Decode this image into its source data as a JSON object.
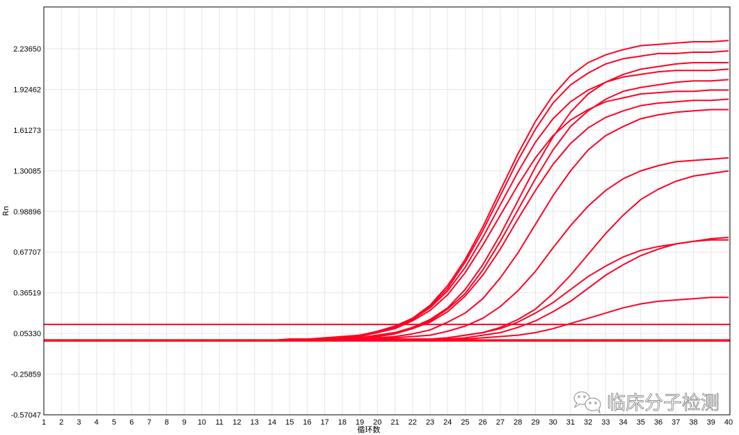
{
  "chart_data": {
    "type": "line",
    "title": "",
    "xlabel": "循环数",
    "ylabel": "Rn",
    "xlim": [
      1,
      40
    ],
    "ylim": [
      -0.57047,
      2.557
    ],
    "x_ticks": [
      1,
      2,
      3,
      4,
      5,
      6,
      7,
      8,
      9,
      10,
      11,
      12,
      13,
      14,
      15,
      16,
      17,
      18,
      19,
      20,
      21,
      22,
      23,
      24,
      25,
      26,
      27,
      28,
      29,
      30,
      31,
      32,
      33,
      34,
      35,
      36,
      37,
      38,
      39,
      40
    ],
    "y_ticks": [
      "-0.57047",
      "-0.25859",
      "0.05330",
      "0.36519",
      "0.67707",
      "0.98896",
      "1.30085",
      "1.61273",
      "1.92462",
      "2.23650"
    ],
    "grid": true,
    "series_color": "#ff0022",
    "horizontal_lines": [
      0.123,
      0.0
    ],
    "x": [
      1,
      2,
      3,
      4,
      5,
      6,
      7,
      8,
      9,
      10,
      11,
      12,
      13,
      14,
      15,
      16,
      17,
      18,
      19,
      20,
      21,
      22,
      23,
      24,
      25,
      26,
      27,
      28,
      29,
      30,
      31,
      32,
      33,
      34,
      35,
      36,
      37,
      38,
      39,
      40
    ],
    "series": [
      {
        "values": [
          0,
          0,
          0,
          0,
          0,
          0,
          0,
          0,
          0,
          0,
          0,
          0,
          0,
          0,
          0.01,
          0.01,
          0.02,
          0.03,
          0.04,
          0.07,
          0.11,
          0.17,
          0.27,
          0.42,
          0.62,
          0.87,
          1.15,
          1.43,
          1.68,
          1.88,
          2.03,
          2.13,
          2.19,
          2.23,
          2.26,
          2.27,
          2.28,
          2.29,
          2.29,
          2.3
        ]
      },
      {
        "values": [
          0,
          0,
          0,
          0,
          0,
          0,
          0,
          0,
          0,
          0,
          0,
          0,
          0,
          0,
          0.01,
          0.01,
          0.01,
          0.02,
          0.04,
          0.06,
          0.1,
          0.17,
          0.26,
          0.4,
          0.6,
          0.84,
          1.11,
          1.38,
          1.62,
          1.82,
          1.96,
          2.05,
          2.12,
          2.16,
          2.18,
          2.2,
          2.2,
          2.21,
          2.21,
          2.22
        ]
      },
      {
        "values": [
          0,
          0,
          0,
          0,
          0,
          0,
          0,
          0,
          0,
          0,
          0,
          0,
          0,
          0,
          0,
          0.01,
          0.01,
          0.01,
          0.02,
          0.04,
          0.06,
          0.1,
          0.16,
          0.25,
          0.39,
          0.58,
          0.81,
          1.07,
          1.33,
          1.56,
          1.75,
          1.89,
          1.98,
          2.04,
          2.08,
          2.1,
          2.12,
          2.13,
          2.13,
          2.13
        ]
      },
      {
        "values": [
          0,
          0,
          0,
          0,
          0,
          0,
          0,
          0,
          0,
          0,
          0,
          0,
          0,
          0,
          0.01,
          0.01,
          0.01,
          0.02,
          0.04,
          0.06,
          0.1,
          0.16,
          0.25,
          0.38,
          0.56,
          0.79,
          1.04,
          1.29,
          1.52,
          1.7,
          1.83,
          1.92,
          1.98,
          2.02,
          2.04,
          2.06,
          2.07,
          2.07,
          2.07,
          2.08
        ]
      },
      {
        "values": [
          0,
          0,
          0,
          0,
          0,
          0,
          0,
          0,
          0,
          0,
          0,
          0,
          0,
          0,
          0,
          0.01,
          0.01,
          0.01,
          0.02,
          0.04,
          0.06,
          0.09,
          0.15,
          0.24,
          0.36,
          0.54,
          0.76,
          1.0,
          1.24,
          1.46,
          1.64,
          1.76,
          1.85,
          1.91,
          1.94,
          1.96,
          1.98,
          1.99,
          1.99,
          2.0
        ]
      },
      {
        "values": [
          0,
          0,
          0,
          0,
          0,
          0,
          0,
          0,
          0,
          0,
          0,
          0,
          0,
          0,
          0,
          0.01,
          0.01,
          0.02,
          0.03,
          0.06,
          0.09,
          0.15,
          0.23,
          0.35,
          0.52,
          0.73,
          0.96,
          1.19,
          1.4,
          1.57,
          1.69,
          1.77,
          1.83,
          1.86,
          1.89,
          1.9,
          1.91,
          1.91,
          1.92,
          1.92
        ]
      },
      {
        "values": [
          0,
          0,
          0,
          0,
          0,
          0,
          0,
          0,
          0,
          0,
          0,
          0,
          0,
          0,
          0,
          0,
          0.01,
          0.01,
          0.02,
          0.03,
          0.05,
          0.09,
          0.14,
          0.22,
          0.34,
          0.5,
          0.7,
          0.93,
          1.15,
          1.35,
          1.51,
          1.63,
          1.71,
          1.76,
          1.8,
          1.82,
          1.83,
          1.84,
          1.84,
          1.85
        ]
      },
      {
        "values": [
          0,
          0,
          0,
          0,
          0,
          0,
          0,
          0,
          0,
          0,
          0,
          0,
          0,
          0,
          0,
          0,
          0,
          0.01,
          0.01,
          0.02,
          0.03,
          0.05,
          0.08,
          0.14,
          0.21,
          0.32,
          0.48,
          0.67,
          0.89,
          1.11,
          1.3,
          1.46,
          1.57,
          1.64,
          1.7,
          1.73,
          1.75,
          1.76,
          1.77,
          1.77
        ]
      },
      {
        "values": [
          0,
          0,
          0,
          0,
          0,
          0,
          0,
          0,
          0,
          0,
          0,
          0,
          0,
          0,
          0,
          0,
          0,
          0,
          0.01,
          0.01,
          0.02,
          0.03,
          0.04,
          0.07,
          0.11,
          0.17,
          0.26,
          0.38,
          0.53,
          0.71,
          0.88,
          1.03,
          1.15,
          1.24,
          1.3,
          1.34,
          1.37,
          1.38,
          1.39,
          1.4
        ]
      },
      {
        "values": [
          0,
          0,
          0,
          0,
          0,
          0,
          0,
          0,
          0,
          0,
          0,
          0,
          0,
          0,
          0,
          0,
          0,
          0,
          0,
          0,
          0.01,
          0.01,
          0.01,
          0.02,
          0.04,
          0.06,
          0.1,
          0.16,
          0.24,
          0.36,
          0.5,
          0.66,
          0.82,
          0.96,
          1.08,
          1.16,
          1.22,
          1.26,
          1.28,
          1.3
        ]
      },
      {
        "values": [
          0,
          0,
          0,
          0,
          0,
          0,
          0,
          0,
          0,
          0,
          0,
          0,
          0,
          0,
          0,
          0,
          0,
          0,
          0,
          0,
          0,
          0.01,
          0.01,
          0.01,
          0.02,
          0.04,
          0.06,
          0.1,
          0.15,
          0.22,
          0.3,
          0.4,
          0.5,
          0.58,
          0.65,
          0.7,
          0.74,
          0.76,
          0.78,
          0.79
        ]
      },
      {
        "values": [
          0,
          0,
          0,
          0,
          0,
          0,
          0,
          0,
          0,
          0,
          0,
          0,
          0,
          0,
          0,
          0,
          0,
          0,
          0,
          0,
          0.01,
          0.01,
          0.01,
          0.02,
          0.04,
          0.06,
          0.09,
          0.14,
          0.21,
          0.29,
          0.39,
          0.49,
          0.57,
          0.64,
          0.69,
          0.72,
          0.74,
          0.76,
          0.77,
          0.77
        ]
      },
      {
        "values": [
          0,
          0,
          0,
          0,
          0,
          0,
          0,
          0,
          0,
          0,
          0,
          0,
          0,
          0,
          0,
          0,
          0,
          0,
          0,
          0,
          0,
          0,
          0,
          0.01,
          0.01,
          0.02,
          0.03,
          0.04,
          0.06,
          0.09,
          0.13,
          0.17,
          0.21,
          0.25,
          0.28,
          0.3,
          0.31,
          0.32,
          0.33,
          0.33
        ]
      }
    ]
  },
  "watermark": {
    "text": "临床分子检测",
    "icon": "wechat-icon"
  }
}
